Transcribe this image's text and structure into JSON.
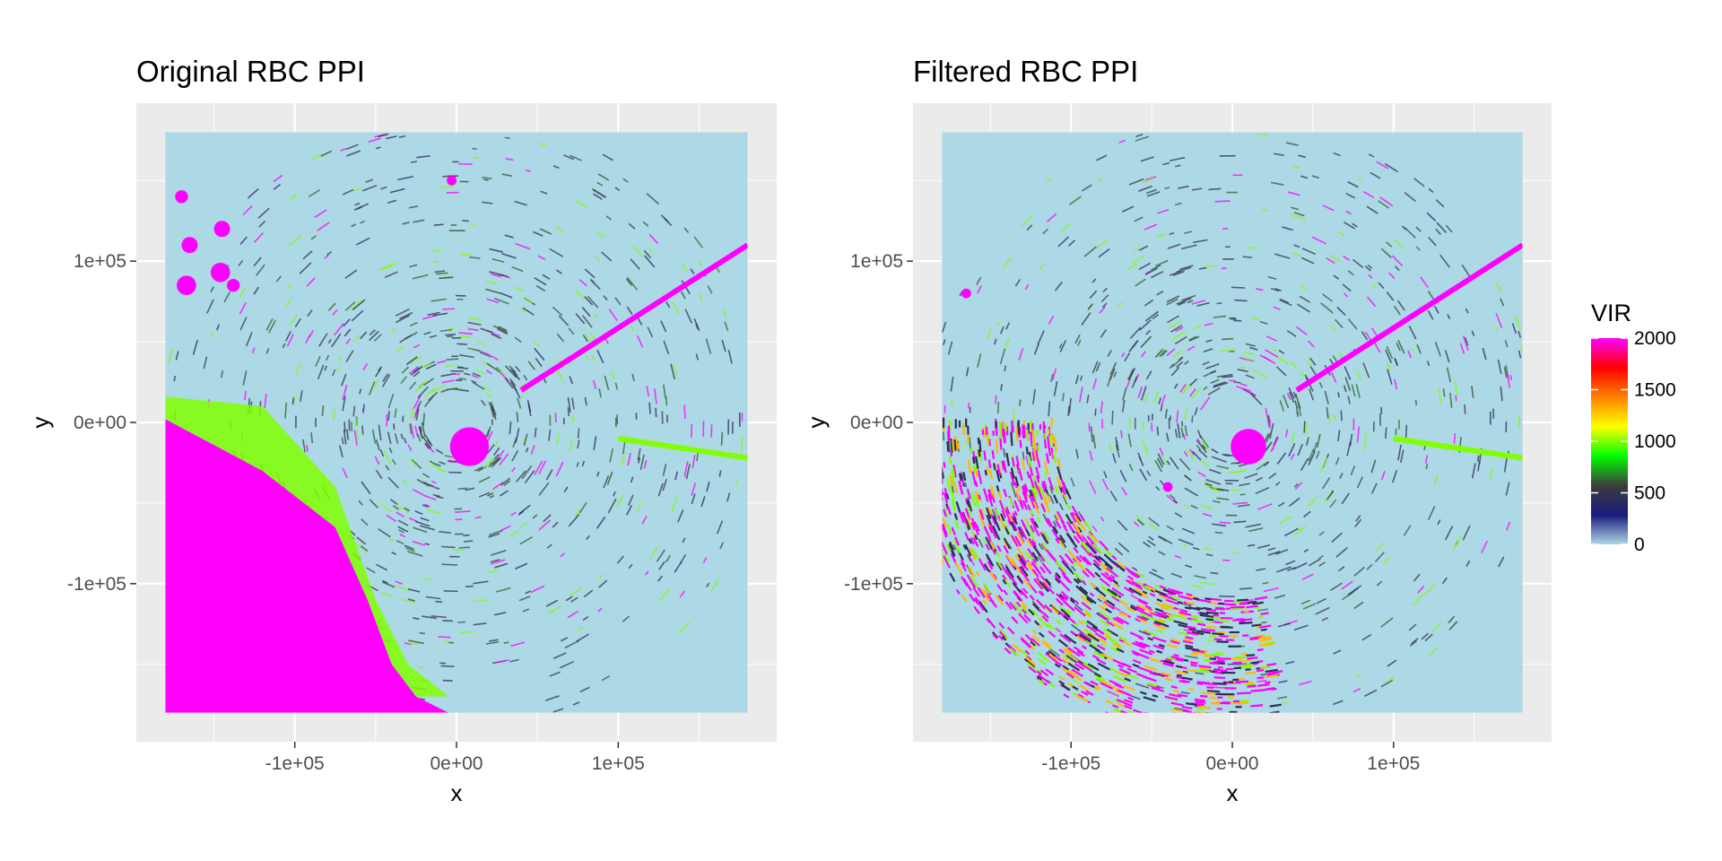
{
  "chart_data": [
    {
      "type": "heatmap",
      "title": "Original RBC PPI",
      "xlabel": "x",
      "ylabel": "y",
      "xlim": [
        -198000,
        198000
      ],
      "ylim": [
        -198000,
        198000
      ],
      "data_extent": [
        -180000,
        180000
      ],
      "x_ticks": [
        -100000,
        0,
        100000
      ],
      "x_tick_labels": [
        "-1e+05",
        "0e+00",
        "1e+05"
      ],
      "y_ticks": [
        -100000,
        0,
        100000
      ],
      "y_tick_labels": [
        "-1e+05",
        "0e+00",
        "1e+05"
      ],
      "grid": true,
      "background_color": "#add8e6",
      "features": [
        {
          "kind": "solid-region",
          "value": 2000,
          "polygon": [
            [
              -180000,
              -180000
            ],
            [
              -180000,
              2000
            ],
            [
              -120000,
              -30000
            ],
            [
              -75000,
              -65000
            ],
            [
              -55000,
              -110000
            ],
            [
              -40000,
              -150000
            ],
            [
              -25000,
              -170000
            ],
            [
              -5000,
              -180000
            ]
          ]
        },
        {
          "kind": "band",
          "value": 1000,
          "polygon": [
            [
              -180000,
              2000
            ],
            [
              -180000,
              16000
            ],
            [
              -120000,
              10000
            ],
            [
              -75000,
              -40000
            ],
            [
              -50000,
              -110000
            ],
            [
              -30000,
              -150000
            ],
            [
              -5000,
              -170000
            ],
            [
              -25000,
              -170000
            ],
            [
              -40000,
              -150000
            ],
            [
              -55000,
              -110000
            ],
            [
              -75000,
              -65000
            ],
            [
              -120000,
              -30000
            ]
          ]
        },
        {
          "kind": "ray",
          "value": 2000,
          "from": [
            40000,
            20000
          ],
          "to": [
            180000,
            110000
          ]
        },
        {
          "kind": "ray",
          "value": 1000,
          "from": [
            100000,
            -10000
          ],
          "to": [
            180000,
            -22000
          ]
        },
        {
          "kind": "blob",
          "value": 2000,
          "center": [
            -170000,
            140000
          ],
          "r": 4000
        },
        {
          "kind": "blob",
          "value": 2000,
          "center": [
            -165000,
            110000
          ],
          "r": 5000
        },
        {
          "kind": "blob",
          "value": 2000,
          "center": [
            -145000,
            120000
          ],
          "r": 5000
        },
        {
          "kind": "blob",
          "value": 2000,
          "center": [
            -167000,
            85000
          ],
          "r": 6000
        },
        {
          "kind": "blob",
          "value": 2000,
          "center": [
            -146000,
            93000
          ],
          "r": 6000
        },
        {
          "kind": "blob",
          "value": 2000,
          "center": [
            -138000,
            85000
          ],
          "r": 4000
        },
        {
          "kind": "blob",
          "value": 2000,
          "center": [
            8000,
            -15000
          ],
          "r": 12000
        },
        {
          "kind": "blob",
          "value": 2000,
          "center": [
            -3000,
            150000
          ],
          "r": 3000
        }
      ]
    },
    {
      "type": "heatmap",
      "title": "Filtered RBC PPI",
      "xlabel": "x",
      "ylabel": "y",
      "xlim": [
        -198000,
        198000
      ],
      "ylim": [
        -198000,
        198000
      ],
      "data_extent": [
        -180000,
        180000
      ],
      "x_ticks": [
        -100000,
        0,
        100000
      ],
      "x_tick_labels": [
        "-1e+05",
        "0e+00",
        "1e+05"
      ],
      "y_ticks": [
        -100000,
        0,
        100000
      ],
      "y_tick_labels": [
        "-1e+05",
        "0e+00",
        "1e+05"
      ],
      "grid": true,
      "background_color": "#add8e6",
      "features": [
        {
          "kind": "ray",
          "value": 2000,
          "from": [
            40000,
            20000
          ],
          "to": [
            180000,
            110000
          ]
        },
        {
          "kind": "ray",
          "value": 1000,
          "from": [
            100000,
            -10000
          ],
          "to": [
            180000,
            -22000
          ]
        },
        {
          "kind": "blob",
          "value": 2000,
          "center": [
            10000,
            -15000
          ],
          "r": 11000
        },
        {
          "kind": "blob",
          "value": 2000,
          "center": [
            -40000,
            -40000
          ],
          "r": 3000
        },
        {
          "kind": "blob",
          "value": 2000,
          "center": [
            -165000,
            80000
          ],
          "r": 3000
        }
      ],
      "speckle_region": {
        "r_min": 110000,
        "r_max": 200000,
        "angle_min_deg": 180,
        "angle_max_deg": 280,
        "value": 1800
      }
    }
  ],
  "legend": {
    "title": "VIR",
    "position": "right",
    "colorbar_colors": [
      "#add8e6",
      "#1a1a7e",
      "#3c3c3c",
      "#00ff00",
      "#ffff00",
      "#ff8000",
      "#ff0000",
      "#ff00ff"
    ],
    "range": [
      0,
      2000
    ],
    "tick_values": [
      2000,
      1500,
      1000,
      500,
      0
    ],
    "tick_labels": [
      "2000",
      "1500",
      "1000",
      "500",
      "0"
    ]
  }
}
